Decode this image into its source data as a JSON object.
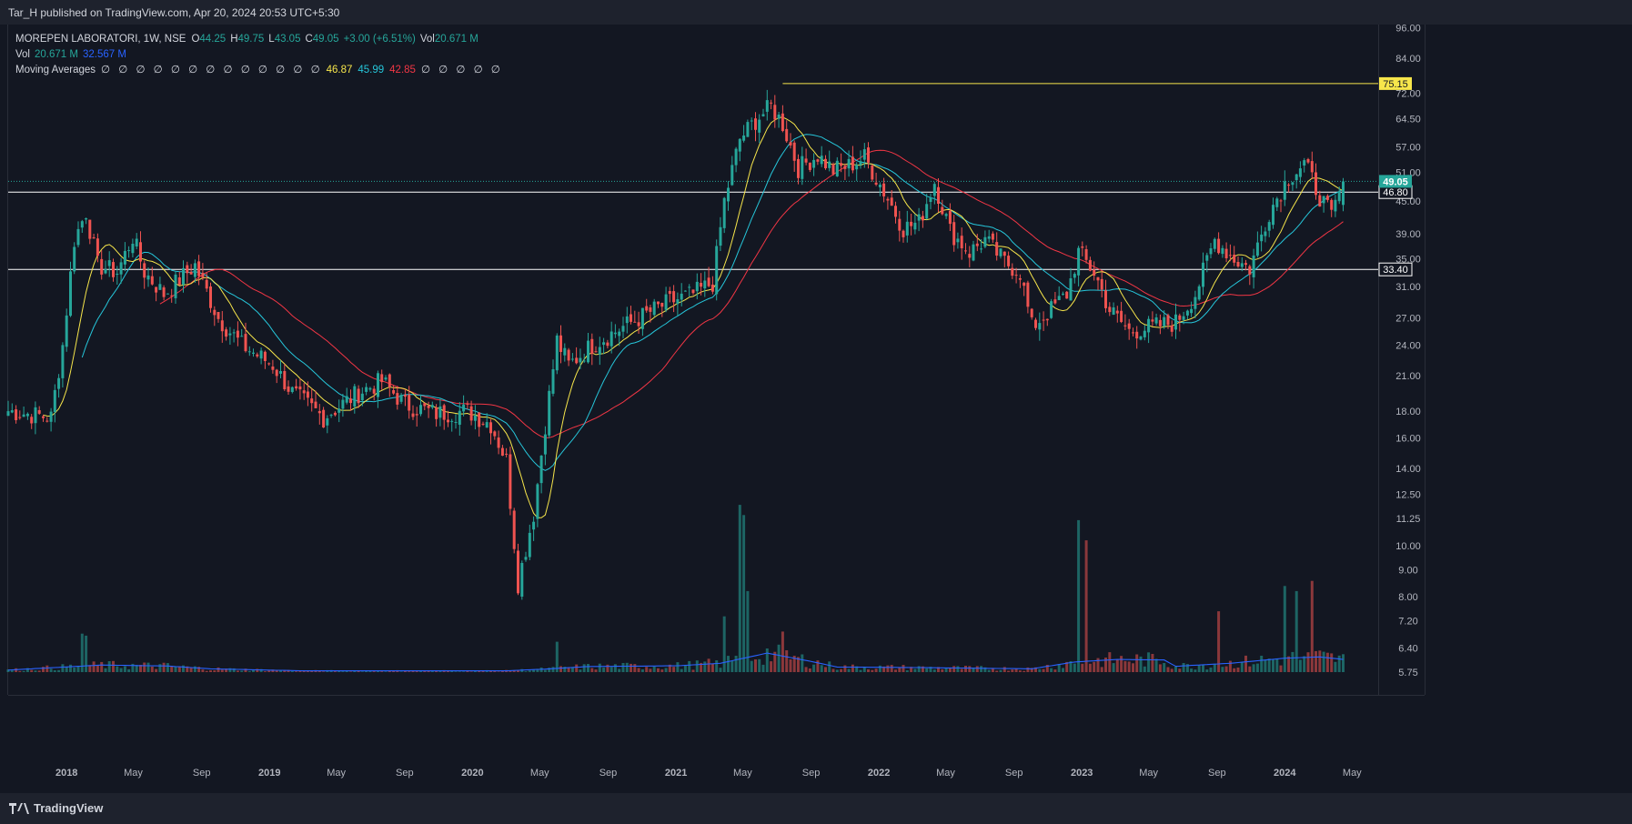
{
  "header": {
    "published": "Tar_H published on TradingView.com, Apr 20, 2024 20:53 UTC+5:30"
  },
  "footer": {
    "brand": "TradingView"
  },
  "legend": {
    "symbol": "MOREPEN LABORATORI, 1W, NSE",
    "open_label": "O",
    "open": "44.25",
    "high_label": "H",
    "high": "49.75",
    "low_label": "L",
    "low": "43.05",
    "close_label": "C",
    "close": "49.05",
    "change": "+3.00 (+6.51%)",
    "vol_label": "Vol",
    "vol": "20.671 M",
    "vol_row_label": "Vol",
    "vol_row_value": "20.671 M",
    "vol_ma_value": "32.567 M",
    "ma_label": "Moving Averages",
    "ma_placeholders_left": "∅ ∅ ∅ ∅ ∅ ∅ ∅ ∅ ∅ ∅ ∅ ∅ ∅",
    "ma1": "46.87",
    "ma2": "45.99",
    "ma3": "42.85",
    "ma_placeholders_right": "∅ ∅ ∅ ∅ ∅"
  },
  "colors": {
    "up": "#26a69a",
    "down": "#ef5350",
    "ma_fast": "#f7e64b",
    "ma_mid": "#26c6da",
    "ma_slow": "#f23645",
    "vol_ma": "#2962ff",
    "price_label": "#26a69a"
  },
  "chart_data": {
    "type": "candlestick",
    "scale": "log",
    "y_ticks": [
      96.0,
      84.0,
      72.0,
      64.5,
      57.0,
      51.0,
      45.0,
      39.0,
      35.0,
      31.0,
      27.0,
      24.0,
      21.0,
      18.0,
      16.0,
      14.0,
      12.5,
      11.25,
      10.0,
      9.0,
      8.0,
      7.2,
      6.4,
      5.75
    ],
    "y_tick_labels": [
      "96.00",
      "84.00",
      "72.00",
      "64.50",
      "57.00",
      "51.00",
      "45.00",
      "39.00",
      "35.00",
      "31.00",
      "27.00",
      "24.00",
      "21.00",
      "18.00",
      "16.00",
      "14.00",
      "12.50",
      "11.25",
      "10.00",
      "9.00",
      "8.00",
      "7.20",
      "6.40",
      "5.75"
    ],
    "x_labels": [
      "2018",
      "May",
      "Sep",
      "2019",
      "May",
      "Sep",
      "2020",
      "May",
      "Sep",
      "2021",
      "May",
      "Sep",
      "2022",
      "May",
      "Sep",
      "2023",
      "May",
      "Sep",
      "2024",
      "May"
    ],
    "x_label_dates": [
      "2018-01-01",
      "2018-05-01",
      "2018-09-01",
      "2019-01-01",
      "2019-05-01",
      "2019-09-01",
      "2020-01-01",
      "2020-05-01",
      "2020-09-01",
      "2021-01-01",
      "2021-05-01",
      "2021-09-01",
      "2022-01-01",
      "2022-05-01",
      "2022-09-01",
      "2023-01-01",
      "2023-05-01",
      "2023-09-01",
      "2024-01-01",
      "2024-05-01"
    ],
    "x_range": [
      "2017-09-18",
      "2024-06-17"
    ],
    "horizontal_levels": [
      {
        "value": 75.15,
        "label": "75.15",
        "color": "#f7e64b",
        "start": "2021-07-12"
      },
      {
        "value": 46.8,
        "label": "46.80",
        "color": "#ffffff",
        "start": "2017-09-18"
      },
      {
        "value": 33.4,
        "label": "33.40",
        "color": "#ffffff",
        "start": "2017-09-18"
      }
    ],
    "last_price": {
      "value": 49.05,
      "label": "49.05"
    },
    "anchors": [
      [
        "2017-09-18",
        18.0
      ],
      [
        "2017-12-04",
        17.5
      ],
      [
        "2017-12-25",
        24.0
      ],
      [
        "2018-01-15",
        38.0
      ],
      [
        "2018-02-05",
        43.0
      ],
      [
        "2018-02-26",
        34.0
      ],
      [
        "2018-04-02",
        33.0
      ],
      [
        "2018-04-30",
        38.5
      ],
      [
        "2018-05-21",
        33.0
      ],
      [
        "2018-06-25",
        30.0
      ],
      [
        "2018-08-20",
        34.0
      ],
      [
        "2018-10-01",
        27.0
      ],
      [
        "2018-11-12",
        24.0
      ],
      [
        "2019-01-07",
        22.0
      ],
      [
        "2019-02-11",
        19.5
      ],
      [
        "2019-04-08",
        17.5
      ],
      [
        "2019-06-10",
        19.5
      ],
      [
        "2019-07-22",
        20.5
      ],
      [
        "2019-09-02",
        18.5
      ],
      [
        "2019-10-28",
        17.8
      ],
      [
        "2019-12-23",
        18.0
      ],
      [
        "2020-02-03",
        17.0
      ],
      [
        "2020-03-02",
        14.5
      ],
      [
        "2020-03-23",
        8.5
      ],
      [
        "2020-04-20",
        11.5
      ],
      [
        "2020-05-11",
        17.0
      ],
      [
        "2020-06-01",
        24.5
      ],
      [
        "2020-06-22",
        22.0
      ],
      [
        "2020-08-03",
        24.0
      ],
      [
        "2020-09-28",
        26.0
      ],
      [
        "2020-11-09",
        27.5
      ],
      [
        "2020-12-21",
        29.0
      ],
      [
        "2021-02-01",
        30.0
      ],
      [
        "2021-03-08",
        31.5
      ],
      [
        "2021-03-29",
        45.0
      ],
      [
        "2021-04-26",
        59.0
      ],
      [
        "2021-05-24",
        64.0
      ],
      [
        "2021-06-21",
        68.0
      ],
      [
        "2021-07-12",
        63.0
      ],
      [
        "2021-08-09",
        52.0
      ],
      [
        "2021-09-13",
        55.0
      ],
      [
        "2021-10-11",
        51.5
      ],
      [
        "2021-11-08",
        52.5
      ],
      [
        "2021-12-06",
        54.5
      ],
      [
        "2022-01-10",
        47.0
      ],
      [
        "2022-02-14",
        40.0
      ],
      [
        "2022-03-14",
        41.0
      ],
      [
        "2022-04-11",
        49.0
      ],
      [
        "2022-05-09",
        39.5
      ],
      [
        "2022-06-13",
        36.0
      ],
      [
        "2022-07-11",
        38.0
      ],
      [
        "2022-08-15",
        34.5
      ],
      [
        "2022-09-12",
        33.0
      ],
      [
        "2022-10-03",
        26.0
      ],
      [
        "2022-11-07",
        28.0
      ],
      [
        "2022-12-05",
        30.0
      ],
      [
        "2022-12-26",
        36.0
      ],
      [
        "2023-01-23",
        33.0
      ],
      [
        "2023-02-20",
        28.0
      ],
      [
        "2023-03-27",
        25.5
      ],
      [
        "2023-05-08",
        26.0
      ],
      [
        "2023-06-19",
        26.5
      ],
      [
        "2023-07-24",
        30.0
      ],
      [
        "2023-08-28",
        38.0
      ],
      [
        "2023-10-02",
        35.0
      ],
      [
        "2023-10-30",
        33.5
      ],
      [
        "2023-12-04",
        43.0
      ],
      [
        "2024-01-08",
        50.0
      ],
      [
        "2024-02-05",
        53.0
      ],
      [
        "2024-03-04",
        46.0
      ],
      [
        "2024-03-25",
        42.0
      ],
      [
        "2024-04-15",
        49.05
      ]
    ],
    "volume_spikes": [
      [
        "2018-01-29",
        7.6
      ],
      [
        "2018-02-05",
        7.2
      ],
      [
        "2020-06-01",
        6.0
      ],
      [
        "2021-03-29",
        11.0
      ],
      [
        "2021-04-26",
        33.0
      ],
      [
        "2021-05-03",
        31.0
      ],
      [
        "2021-05-10",
        16.0
      ],
      [
        "2021-07-12",
        8.0
      ],
      [
        "2022-12-26",
        30.0
      ],
      [
        "2023-01-09",
        26.0
      ],
      [
        "2023-09-04",
        12.0
      ],
      [
        "2024-01-01",
        17.0
      ],
      [
        "2024-01-22",
        16.0
      ],
      [
        "2024-02-19",
        18.0
      ]
    ],
    "vol_ma_anchors": [
      [
        "2017-09-18",
        0.8
      ],
      [
        "2018-03-05",
        2.8
      ],
      [
        "2018-07-02",
        2.4
      ],
      [
        "2018-09-17",
        1.3
      ],
      [
        "2019-03-04",
        0.5
      ],
      [
        "2020-03-02",
        0.5
      ],
      [
        "2020-05-11",
        1.2
      ],
      [
        "2020-07-27",
        2.2
      ],
      [
        "2021-01-04",
        2.5
      ],
      [
        "2021-03-22",
        3.5
      ],
      [
        "2021-06-14",
        7.5
      ],
      [
        "2021-09-06",
        4.0
      ],
      [
        "2021-10-18",
        2.0
      ],
      [
        "2022-03-07",
        1.8
      ],
      [
        "2022-10-03",
        1.3
      ],
      [
        "2022-12-19",
        4.0
      ],
      [
        "2023-03-06",
        5.0
      ],
      [
        "2023-05-29",
        4.8
      ],
      [
        "2023-06-19",
        2.3
      ],
      [
        "2023-09-25",
        3.5
      ],
      [
        "2024-01-01",
        5.5
      ],
      [
        "2024-03-04",
        6.0
      ],
      [
        "2024-04-15",
        5.0
      ]
    ],
    "series": [
      {
        "name": "ma1",
        "period": 10,
        "value": 46.87
      },
      {
        "name": "ma2",
        "period": 20,
        "value": 45.99
      },
      {
        "name": "ma3",
        "period": 40,
        "value": 42.85
      }
    ],
    "vol_axis_max_m": 70
  }
}
